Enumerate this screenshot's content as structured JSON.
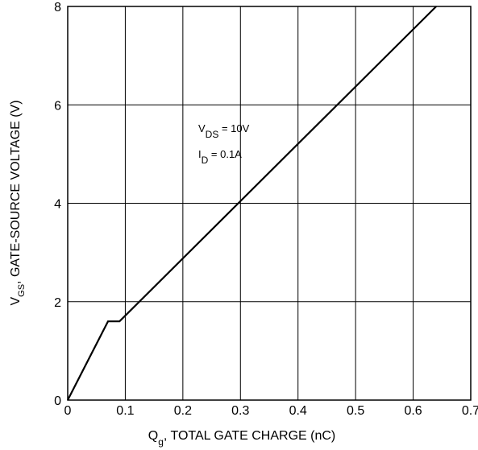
{
  "chart_data": {
    "type": "line",
    "x": [
      0,
      0.07,
      0.09,
      0.64
    ],
    "values": [
      0,
      1.6,
      1.6,
      8
    ],
    "color": "#000000",
    "xlim": [
      0,
      0.7
    ],
    "xticks": [
      0,
      0.1,
      0.2,
      0.3,
      0.4,
      0.5,
      0.6,
      0.7
    ],
    "ylim": [
      0,
      8
    ],
    "yticks": [
      0,
      2,
      4,
      6,
      8
    ],
    "grid": true,
    "xlabel": {
      "main": "Q",
      "sub": "g",
      "rest": ", TOTAL GATE CHARGE (nC)"
    },
    "ylabel": {
      "main": "V",
      "sub": "GS",
      "rest": ", GATE-SOURCE VOLTAGE (V)"
    },
    "annotations": [
      {
        "main": "V",
        "sub": "DS",
        "rest": " = 10V"
      },
      {
        "main": "I",
        "sub": "D",
        "rest": " = 0.1A"
      }
    ]
  }
}
